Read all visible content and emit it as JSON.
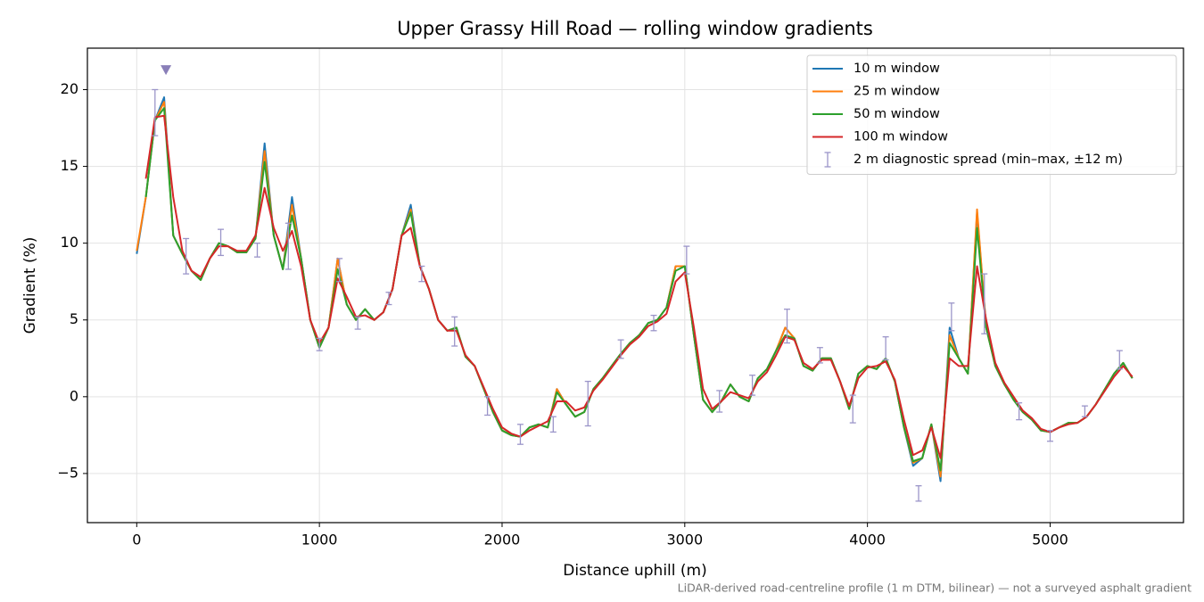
{
  "chart_data": {
    "type": "line",
    "title": "Upper Grassy Hill Road — rolling window gradients",
    "xlabel": "Distance uphill (m)",
    "ylabel": "Gradient (%)",
    "footnote": "LiDAR-derived road-centreline profile (1 m DTM, bilinear) — not a surveyed asphalt gradient",
    "x": [
      0,
      50,
      100,
      150,
      200,
      250,
      300,
      350,
      400,
      450,
      500,
      550,
      600,
      650,
      700,
      750,
      800,
      850,
      900,
      950,
      1000,
      1050,
      1100,
      1150,
      1200,
      1250,
      1300,
      1350,
      1400,
      1450,
      1500,
      1550,
      1600,
      1650,
      1700,
      1750,
      1800,
      1850,
      1900,
      1950,
      2000,
      2050,
      2100,
      2150,
      2200,
      2250,
      2300,
      2350,
      2400,
      2450,
      2500,
      2550,
      2600,
      2650,
      2700,
      2750,
      2800,
      2850,
      2900,
      2950,
      3000,
      3050,
      3100,
      3150,
      3200,
      3250,
      3300,
      3350,
      3400,
      3450,
      3500,
      3550,
      3600,
      3650,
      3700,
      3750,
      3800,
      3850,
      3900,
      3950,
      4000,
      4050,
      4100,
      4150,
      4200,
      4250,
      4300,
      4350,
      4400,
      4450,
      4500,
      4550,
      4600,
      4650,
      4700,
      4750,
      4800,
      4850,
      4900,
      4950,
      5000,
      5050,
      5100,
      5150,
      5200,
      5250,
      5300,
      5350,
      5400,
      5450
    ],
    "series": [
      {
        "name": "10 m window",
        "color": "#1f77b4",
        "values": [
          9.3,
          13,
          18,
          19.5,
          10.5,
          9.3,
          8.2,
          7.6,
          9.0,
          10.0,
          9.8,
          9.4,
          9.4,
          10.3,
          16.5,
          10.5,
          8.3,
          13,
          9,
          5,
          3.2,
          4.5,
          9.0,
          6.0,
          5.0,
          5.7,
          5.0,
          5.5,
          7.0,
          10.5,
          12.5,
          8.5,
          7.0,
          5.0,
          4.3,
          4.5,
          2.6,
          2.0,
          0.5,
          -1.0,
          -2.2,
          -2.5,
          -2.6,
          -2.0,
          -1.8,
          -2.0,
          0.5,
          -0.5,
          -1.3,
          -1.0,
          0.5,
          1.2,
          2.0,
          2.8,
          3.5,
          4.0,
          4.8,
          5.0,
          5.8,
          8.5,
          8.5,
          4.0,
          -0.2,
          -1.0,
          -0.3,
          0.8,
          0.0,
          -0.3,
          1.2,
          1.8,
          3.0,
          4.5,
          3.8,
          2.0,
          1.7,
          2.5,
          2.5,
          1.0,
          -0.8,
          1.5,
          2.0,
          1.8,
          2.5,
          1.0,
          -2.0,
          -4.5,
          -4.0,
          -1.8,
          -5.5,
          4.5,
          2.5,
          1.5,
          12.0,
          4.5,
          2.0,
          0.8,
          -0.2,
          -1.0,
          -1.5,
          -2.2,
          -2.3,
          -2.0,
          -1.7,
          -1.7,
          -1.3,
          -0.5,
          0.5,
          1.5,
          2.2,
          1.2
        ]
      },
      {
        "name": "25 m window",
        "color": "#ff7f0e",
        "values": [
          9.5,
          13,
          18,
          19.2,
          10.5,
          9.3,
          8.2,
          7.6,
          9.0,
          10.0,
          9.8,
          9.4,
          9.4,
          10.3,
          16.0,
          10.5,
          8.3,
          12.5,
          9,
          5,
          3.2,
          4.5,
          9.0,
          6.0,
          5.0,
          5.7,
          5.0,
          5.5,
          7.0,
          10.5,
          12.2,
          8.5,
          7.0,
          5.0,
          4.3,
          4.5,
          2.6,
          2.0,
          0.5,
          -1.0,
          -2.2,
          -2.5,
          -2.6,
          -2.0,
          -1.8,
          -2.0,
          0.5,
          -0.5,
          -1.3,
          -1.0,
          0.5,
          1.2,
          2.0,
          2.8,
          3.5,
          4.0,
          4.8,
          5.0,
          5.8,
          8.5,
          8.5,
          4.0,
          -0.2,
          -1.0,
          -0.3,
          0.8,
          0.0,
          -0.3,
          1.2,
          1.8,
          3.0,
          4.5,
          3.8,
          2.0,
          1.7,
          2.5,
          2.5,
          1.0,
          -0.8,
          1.5,
          2.0,
          1.8,
          2.5,
          1.0,
          -2.0,
          -4.3,
          -4.0,
          -1.8,
          -5.2,
          4.0,
          2.5,
          1.5,
          12.2,
          4.5,
          2.0,
          0.8,
          -0.2,
          -1.0,
          -1.5,
          -2.2,
          -2.3,
          -2.0,
          -1.7,
          -1.7,
          -1.3,
          -0.5,
          0.5,
          1.5,
          2.2,
          1.2
        ]
      },
      {
        "name": "50 m window",
        "color": "#2ca02c",
        "values": [
          null,
          13,
          18,
          18.8,
          10.5,
          9.3,
          8.2,
          7.6,
          9.0,
          10.0,
          9.8,
          9.4,
          9.4,
          10.3,
          15.3,
          10.5,
          8.3,
          11.8,
          9,
          5,
          3.2,
          4.5,
          8.3,
          6.0,
          5.0,
          5.7,
          5.0,
          5.5,
          7.0,
          10.5,
          12,
          8.5,
          7.0,
          5.0,
          4.3,
          4.5,
          2.6,
          2.0,
          0.5,
          -1.0,
          -2.2,
          -2.5,
          -2.6,
          -2.0,
          -1.8,
          -2.0,
          0.3,
          -0.5,
          -1.3,
          -1.0,
          0.5,
          1.2,
          2.0,
          2.8,
          3.5,
          4.0,
          4.8,
          5.0,
          5.8,
          8.2,
          8.5,
          4.0,
          -0.2,
          -1.0,
          -0.3,
          0.8,
          0.0,
          -0.3,
          1.2,
          1.8,
          3.0,
          4.0,
          3.8,
          2.0,
          1.7,
          2.5,
          2.5,
          1.0,
          -0.8,
          1.5,
          2.0,
          1.8,
          2.5,
          1.0,
          -2.0,
          -4.2,
          -4.0,
          -1.8,
          -4.8,
          3.5,
          2.5,
          1.5,
          11.0,
          4.5,
          2.0,
          0.8,
          -0.2,
          -1.0,
          -1.5,
          -2.2,
          -2.3,
          -2.0,
          -1.7,
          -1.7,
          -1.3,
          -0.5,
          0.5,
          1.5,
          2.2,
          1.2
        ]
      },
      {
        "name": "100 m window",
        "color": "#d62728",
        "values": [
          null,
          14.2,
          18.2,
          18.3,
          13,
          9.5,
          8.2,
          7.8,
          9.0,
          9.8,
          9.8,
          9.5,
          9.5,
          10.5,
          13.6,
          11,
          9.5,
          10.8,
          8.5,
          5,
          3.5,
          4.5,
          7.7,
          6.5,
          5.2,
          5.3,
          5.0,
          5.5,
          7,
          10.5,
          11,
          8.5,
          7,
          5,
          4.3,
          4.3,
          2.7,
          2,
          0.6,
          -0.8,
          -2.0,
          -2.4,
          -2.6,
          -2.2,
          -1.9,
          -1.6,
          -0.3,
          -0.3,
          -0.9,
          -0.7,
          0.4,
          1.1,
          1.9,
          2.7,
          3.4,
          3.9,
          4.6,
          4.9,
          5.4,
          7.5,
          8.1,
          4.5,
          0.5,
          -0.8,
          -0.3,
          0.3,
          0.1,
          -0.1,
          1.0,
          1.6,
          2.7,
          3.9,
          3.7,
          2.2,
          1.8,
          2.4,
          2.4,
          1.0,
          -0.6,
          1.2,
          1.9,
          2.0,
          2.3,
          1.1,
          -1.5,
          -3.8,
          -3.5,
          -2.0,
          -4.0,
          2.5,
          2.0,
          2.0,
          8.5,
          5,
          2.2,
          0.9,
          0,
          -0.9,
          -1.4,
          -2.1,
          -2.3,
          -2.0,
          -1.8,
          -1.7,
          -1.3,
          -0.5,
          0.4,
          1.3,
          2.0,
          1.3
        ]
      }
    ],
    "errorbars": {
      "name": "2 m diagnostic spread (min–max, ±12 m)",
      "color": "#9b95c9",
      "x": [
        100,
        270,
        460,
        660,
        830,
        1000,
        1110,
        1210,
        1380,
        1560,
        1740,
        1920,
        2100,
        2280,
        2470,
        2650,
        2830,
        3010,
        3190,
        3370,
        3560,
        3740,
        3920,
        4100,
        4280,
        4460,
        4640,
        4830,
        5000,
        5190,
        5380
      ],
      "low": [
        17,
        8,
        9.2,
        9.1,
        8.3,
        3,
        7.5,
        4.4,
        6,
        7.5,
        3.3,
        -1.2,
        -3.1,
        -2.3,
        -1.9,
        2.5,
        4.3,
        8,
        -1,
        0.1,
        3.5,
        2.2,
        -1.7,
        2.4,
        -6.8,
        4.3,
        4.1,
        -1.5,
        -2.9,
        -1.3,
        1.8
      ],
      "high": [
        20,
        10.3,
        10.9,
        10,
        11.3,
        3.8,
        9,
        5.2,
        6.8,
        8.5,
        5.2,
        0,
        -1.8,
        -1.3,
        1,
        3.7,
        5.3,
        9.8,
        0.4,
        1.4,
        5.7,
        3.2,
        0.1,
        3.9,
        -5.8,
        6.1,
        8,
        -0.4,
        -2.2,
        -0.6,
        3.0
      ]
    },
    "peak_marker": {
      "x": 160,
      "y": 21.3,
      "color": "#8a7fb8"
    },
    "xlim": [
      -270,
      5730
    ],
    "ylim": [
      -8.2,
      22.7
    ],
    "xticks": [
      0,
      1000,
      2000,
      3000,
      4000,
      5000
    ],
    "yticks": [
      {
        "value": -5,
        "label": "−5"
      },
      0,
      5,
      10,
      15,
      20
    ],
    "grid": true,
    "legend": "upper right"
  }
}
